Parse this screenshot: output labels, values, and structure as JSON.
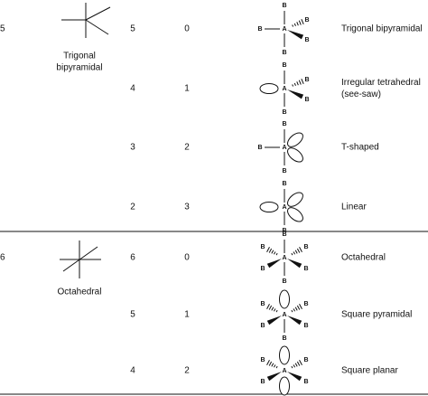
{
  "atom_labels": {
    "central": "A",
    "ligand": "B"
  },
  "groups": [
    {
      "steric_number": 5,
      "geometry": [
        "Trigonal",
        "bipyramidal"
      ],
      "rows": [
        {
          "bonding_pairs": 5,
          "lone_pairs": 0,
          "shape": [
            "Trigonal bipyramidal"
          ]
        },
        {
          "bonding_pairs": 4,
          "lone_pairs": 1,
          "shape": [
            "Irregular tetrahedral",
            "(see-saw)"
          ]
        },
        {
          "bonding_pairs": 3,
          "lone_pairs": 2,
          "shape": [
            "T-shaped"
          ]
        },
        {
          "bonding_pairs": 2,
          "lone_pairs": 3,
          "shape": [
            "Linear"
          ]
        }
      ]
    },
    {
      "steric_number": 6,
      "geometry": [
        "Octahedral"
      ],
      "rows": [
        {
          "bonding_pairs": 6,
          "lone_pairs": 0,
          "shape": [
            "Octahedral"
          ]
        },
        {
          "bonding_pairs": 5,
          "lone_pairs": 1,
          "shape": [
            "Square pyramidal"
          ]
        },
        {
          "bonding_pairs": 4,
          "lone_pairs": 2,
          "shape": [
            "Square planar"
          ]
        }
      ]
    }
  ]
}
